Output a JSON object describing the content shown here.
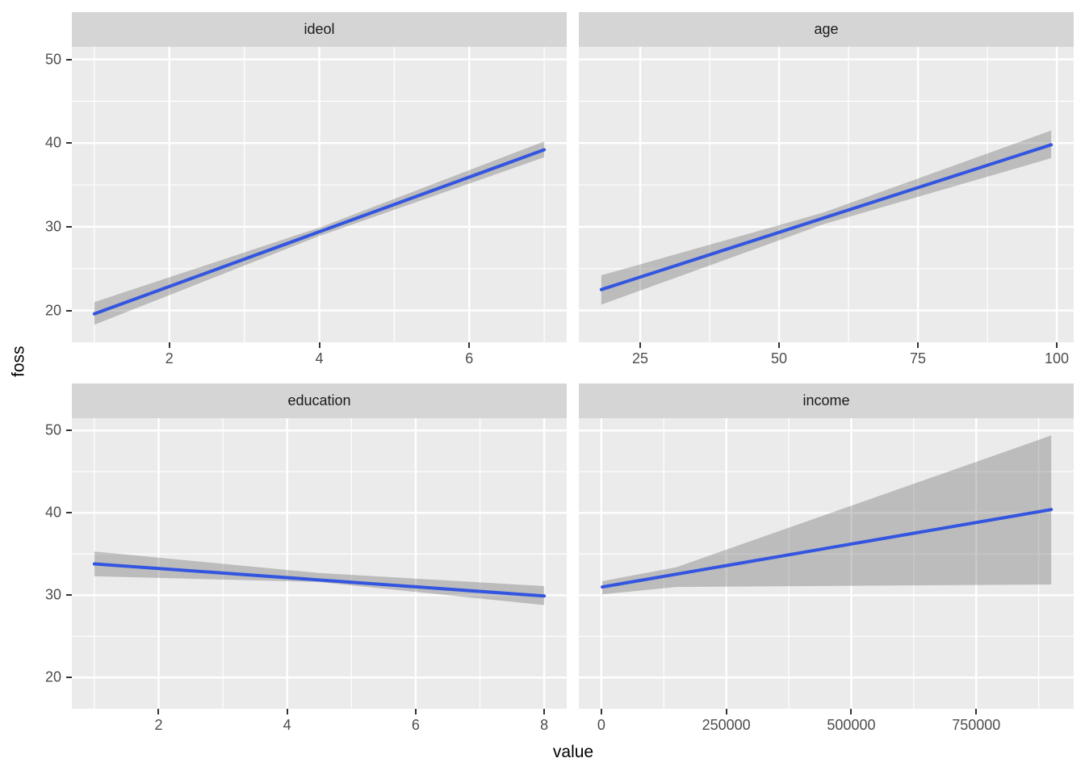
{
  "figure": {
    "background": "#FFFFFF",
    "panel_background": "#EBEBEB",
    "strip_background": "#D5D5D5",
    "grid_color": "#FFFFFF",
    "line_color": "#3355E0",
    "ribbon_color": "rgba(90,90,90,0.32)",
    "tick_color": "#333333",
    "tick_label_color": "#4D4D4D"
  },
  "axes": {
    "x_title": "value",
    "y_title": "foss"
  },
  "chart_data": {
    "type": "line",
    "title": "",
    "xlabel": "value",
    "ylabel": "foss",
    "legend": "none",
    "grid": "on",
    "y_domain": [
      16.2,
      51.5
    ],
    "y_ticks": [
      50,
      40,
      30,
      20
    ],
    "y_minor": [
      45,
      35,
      25
    ],
    "facets": [
      {
        "label": "ideol",
        "x_domain": [
          0.7,
          7.3
        ],
        "x_ticks": [
          2,
          4,
          6
        ],
        "x_minor": [
          1,
          3,
          5,
          7
        ],
        "line": {
          "x": [
            1,
            7
          ],
          "y": [
            19.6,
            39.2
          ]
        },
        "ribbon": {
          "x": [
            1,
            4,
            7
          ],
          "upper": [
            21.0,
            29.9,
            40.2
          ],
          "lower": [
            18.3,
            28.9,
            38.3
          ]
        }
      },
      {
        "label": "age",
        "x_domain": [
          13.95,
          103.05
        ],
        "x_ticks": [
          25,
          50,
          75,
          100
        ],
        "x_minor": [
          37.5,
          62.5,
          87.5
        ],
        "line": {
          "x": [
            18,
            99
          ],
          "y": [
            22.5,
            39.8
          ]
        },
        "ribbon": {
          "x": [
            18,
            58,
            99
          ],
          "upper": [
            24.2,
            31.7,
            41.5
          ],
          "lower": [
            20.7,
            30.3,
            38.2
          ]
        }
      },
      {
        "label": "education",
        "x_domain": [
          0.65,
          8.35
        ],
        "x_ticks": [
          2,
          4,
          6,
          8
        ],
        "x_minor": [
          1,
          3,
          5,
          7
        ],
        "line": {
          "x": [
            1,
            8
          ],
          "y": [
            33.8,
            29.9
          ]
        },
        "ribbon": {
          "x": [
            1,
            4.5,
            8
          ],
          "upper": [
            35.3,
            32.7,
            31.1
          ],
          "lower": [
            32.3,
            31.6,
            28.8
          ]
        }
      },
      {
        "label": "income",
        "x_domain": [
          -45000,
          945000
        ],
        "x_ticks": [
          0,
          250000,
          500000,
          750000
        ],
        "x_minor": [
          125000,
          375000,
          625000,
          875000
        ],
        "line": {
          "x": [
            2000,
            900000
          ],
          "y": [
            31.0,
            40.4
          ]
        },
        "ribbon": {
          "x": [
            2000,
            150000,
            900000
          ],
          "upper": [
            31.7,
            33.4,
            49.4
          ],
          "lower": [
            30.1,
            31.0,
            31.3
          ]
        }
      }
    ]
  }
}
